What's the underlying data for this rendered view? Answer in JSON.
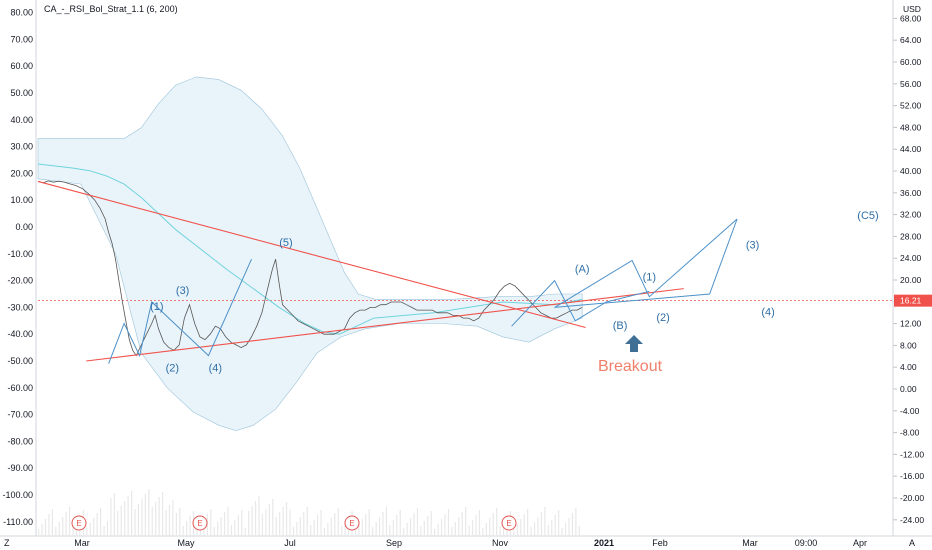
{
  "chart_data": {
    "type": "line",
    "title": "CA_-_RSI_Bol_Strat_1.1 (6, 200)",
    "left_axis": {
      "ylim": [
        -114,
        83
      ],
      "ticks": [
        80,
        70,
        60,
        50,
        40,
        30,
        20,
        10,
        0,
        -10,
        -20,
        -30,
        -40,
        -50,
        -60,
        -70,
        -80,
        -90,
        -100,
        -110
      ]
    },
    "right_axis": {
      "unit": "USD",
      "ylim": [
        -26.3,
        71.6
      ],
      "ticks": [
        68,
        64,
        60,
        56,
        52,
        48,
        44,
        40,
        36,
        32,
        28,
        24,
        20,
        16,
        12,
        8,
        4,
        0,
        -4,
        -8,
        -12,
        -16,
        -20,
        -24
      ],
      "last_price": "16.21",
      "last_price_value": 16.21
    },
    "x_ticks": [
      {
        "label": "Mar",
        "x": "Mar"
      },
      {
        "label": "May",
        "x": "May"
      },
      {
        "label": "Jul",
        "x": "Jul"
      },
      {
        "label": "Sep",
        "x": "Sep"
      },
      {
        "label": "Nov",
        "x": "Nov"
      },
      {
        "label": "2021",
        "x": "2021"
      },
      {
        "label": "Feb",
        "x": "Feb"
      },
      {
        "label": "Mar",
        "x": "Mar2"
      },
      {
        "label": "09:00",
        "x": "09:00"
      },
      {
        "label": "Apr",
        "x": "Apr"
      }
    ],
    "price_path": [
      [
        0,
        17
      ],
      [
        3,
        16.5
      ],
      [
        6,
        17.2
      ],
      [
        9,
        16.7
      ],
      [
        12,
        17.1
      ],
      [
        15,
        16.8
      ],
      [
        18,
        16.2
      ],
      [
        22,
        15.5
      ],
      [
        26,
        14.2
      ],
      [
        30,
        12
      ],
      [
        33,
        10
      ],
      [
        36,
        7
      ],
      [
        39,
        3
      ],
      [
        41,
        -2
      ],
      [
        43,
        -6
      ],
      [
        45,
        -12
      ],
      [
        47,
        -20
      ],
      [
        49,
        -28
      ],
      [
        51,
        -35
      ],
      [
        53,
        -42
      ],
      [
        55,
        -46
      ],
      [
        57,
        -48
      ],
      [
        60,
        -44
      ],
      [
        63,
        -40
      ],
      [
        66,
        -36
      ],
      [
        68,
        -33
      ],
      [
        70,
        -38
      ],
      [
        73,
        -43
      ],
      [
        76,
        -45
      ],
      [
        79,
        -46
      ],
      [
        82,
        -44
      ],
      [
        85,
        -34
      ],
      [
        88,
        -29
      ],
      [
        91,
        -36
      ],
      [
        94,
        -41
      ],
      [
        97,
        -42
      ],
      [
        100,
        -40
      ],
      [
        103,
        -37
      ],
      [
        106,
        -38
      ],
      [
        109,
        -41
      ],
      [
        112,
        -43
      ],
      [
        115,
        -44
      ],
      [
        118,
        -45
      ],
      [
        121,
        -44
      ],
      [
        124,
        -41
      ],
      [
        127,
        -37
      ],
      [
        130,
        -32
      ],
      [
        133,
        -24
      ],
      [
        136,
        -16
      ],
      [
        138,
        -12
      ],
      [
        140,
        -21
      ],
      [
        142,
        -29
      ],
      [
        145,
        -31
      ],
      [
        148,
        -33
      ],
      [
        151,
        -35
      ],
      [
        154,
        -36
      ],
      [
        157,
        -37
      ],
      [
        160,
        -38
      ],
      [
        163,
        -39
      ],
      [
        166,
        -40
      ],
      [
        169,
        -40
      ],
      [
        172,
        -40
      ],
      [
        175,
        -39
      ],
      [
        178,
        -38
      ],
      [
        181,
        -34
      ],
      [
        184,
        -32
      ],
      [
        187,
        -31
      ],
      [
        190,
        -31
      ],
      [
        193,
        -30
      ],
      [
        196,
        -30
      ],
      [
        199,
        -29
      ],
      [
        202,
        -29
      ],
      [
        205,
        -28
      ],
      [
        208,
        -28
      ],
      [
        211,
        -28
      ],
      [
        214,
        -29
      ],
      [
        217,
        -30
      ],
      [
        220,
        -31
      ],
      [
        223,
        -31
      ],
      [
        226,
        -31
      ],
      [
        229,
        -31
      ],
      [
        232,
        -32
      ],
      [
        235,
        -32
      ],
      [
        238,
        -32
      ],
      [
        241,
        -33
      ],
      [
        244,
        -33
      ],
      [
        247,
        -34
      ],
      [
        250,
        -34
      ],
      [
        253,
        -35
      ],
      [
        256,
        -34
      ],
      [
        259,
        -31
      ],
      [
        262,
        -29
      ],
      [
        265,
        -27
      ],
      [
        268,
        -24
      ],
      [
        271,
        -22
      ],
      [
        274,
        -21
      ],
      [
        277,
        -22
      ],
      [
        280,
        -24
      ],
      [
        283,
        -26
      ],
      [
        286,
        -28
      ],
      [
        289,
        -30
      ],
      [
        292,
        -32
      ],
      [
        295,
        -33
      ],
      [
        298,
        -34
      ],
      [
        301,
        -34
      ],
      [
        304,
        -33
      ],
      [
        307,
        -32
      ],
      [
        310,
        -31
      ],
      [
        313,
        -31
      ],
      [
        316,
        -30
      ]
    ],
    "bollinger": {
      "upper": [
        [
          0,
          33
        ],
        [
          30,
          33
        ],
        [
          50,
          33
        ],
        [
          60,
          37
        ],
        [
          70,
          46
        ],
        [
          80,
          53
        ],
        [
          92,
          56
        ],
        [
          105,
          55
        ],
        [
          118,
          51
        ],
        [
          130,
          44
        ],
        [
          142,
          34
        ],
        [
          152,
          22
        ],
        [
          162,
          7
        ],
        [
          170,
          -5
        ],
        [
          178,
          -17
        ],
        [
          186,
          -25
        ],
        [
          196,
          -27
        ],
        [
          215,
          -27
        ],
        [
          240,
          -27
        ],
        [
          265,
          -26
        ],
        [
          285,
          -26
        ],
        [
          300,
          -25
        ],
        [
          316,
          -25
        ]
      ],
      "lower": [
        [
          0,
          18
        ],
        [
          25,
          16
        ],
        [
          45,
          -10
        ],
        [
          60,
          -47
        ],
        [
          75,
          -60
        ],
        [
          90,
          -69
        ],
        [
          105,
          -74
        ],
        [
          115,
          -76
        ],
        [
          125,
          -74
        ],
        [
          138,
          -68
        ],
        [
          150,
          -58
        ],
        [
          162,
          -47
        ],
        [
          176,
          -41
        ],
        [
          190,
          -38
        ],
        [
          210,
          -36
        ],
        [
          235,
          -36
        ],
        [
          255,
          -37
        ],
        [
          270,
          -41
        ],
        [
          285,
          -43
        ],
        [
          300,
          -38
        ],
        [
          316,
          -34
        ]
      ]
    },
    "ma_line": [
      [
        0,
        23.5
      ],
      [
        20,
        22
      ],
      [
        30,
        21
      ],
      [
        40,
        19
      ],
      [
        50,
        16
      ],
      [
        60,
        11
      ],
      [
        70,
        5
      ],
      [
        80,
        -1
      ],
      [
        90,
        -6
      ],
      [
        100,
        -11
      ],
      [
        110,
        -16
      ],
      [
        125,
        -23
      ],
      [
        140,
        -30
      ],
      [
        155,
        -36
      ],
      [
        165,
        -39
      ],
      [
        175,
        -40
      ],
      [
        195,
        -34
      ],
      [
        230,
        -32
      ],
      [
        270,
        -28
      ],
      [
        300,
        -29
      ],
      [
        316,
        -27
      ]
    ],
    "trendlines": [
      {
        "name": "upper-trend",
        "color": "#f0524b",
        "points": [
          [
            0,
            17
          ],
          [
            318,
            -37.5
          ]
        ]
      },
      {
        "name": "lower-trend",
        "color": "#f0524b",
        "points": [
          [
            28,
            -50
          ],
          [
            375,
            -23
          ]
        ]
      }
    ],
    "projection": {
      "color": "#4d91c9",
      "path_a": [
        [
          300,
          -30
        ],
        [
          345,
          -12.5
        ],
        [
          355,
          -26
        ],
        [
          406,
          3
        ]
      ],
      "path_b": [
        [
          300,
          -30
        ],
        [
          390,
          -25
        ],
        [
          406,
          3
        ]
      ]
    },
    "wave_labels": [
      {
        "text": "(1)",
        "x": 69,
        "y": -31
      },
      {
        "text": "(2)",
        "x": 78,
        "y": -54
      },
      {
        "text": "(3)",
        "x": 84,
        "y": -25
      },
      {
        "text": "(4)",
        "x": 103,
        "y": -54
      },
      {
        "text": "(5)",
        "x": 144,
        "y": -7
      },
      {
        "text": "(A)",
        "x": 316,
        "y": -17
      },
      {
        "text": "(B)",
        "x": 338,
        "y": -38
      },
      {
        "text": "(1)",
        "x": 355,
        "y": -20
      },
      {
        "text": "(2)",
        "x": 363,
        "y": -35
      },
      {
        "text": "(3)",
        "x": 415,
        "y": -8
      },
      {
        "text": "(4)",
        "x": 424,
        "y": -33
      },
      {
        "text": "(C5)",
        "x": 482,
        "y": 3
      }
    ],
    "annotation": {
      "text": "Breakout",
      "x": 358,
      "y": -52
    },
    "earnings_marks": [
      79,
      200,
      352,
      509
    ]
  }
}
